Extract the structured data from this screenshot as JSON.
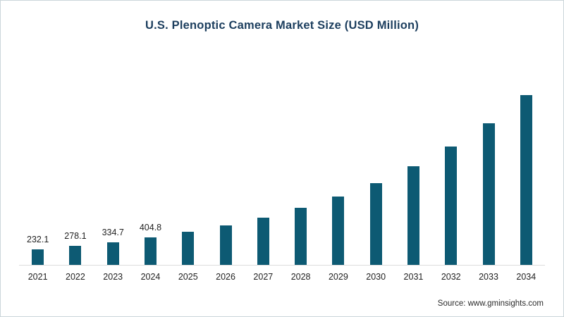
{
  "chart_data": {
    "type": "bar",
    "title": "U.S. Plenoptic Camera Market Size (USD Million)",
    "xlabel": "",
    "ylabel": "USD Million",
    "categories": [
      "2021",
      "2022",
      "2023",
      "2024",
      "2025",
      "2026",
      "2027",
      "2028",
      "2029",
      "2030",
      "2031",
      "2032",
      "2033",
      "2034"
    ],
    "values": [
      232.1,
      278.1,
      334.7,
      404.8,
      485,
      580,
      700,
      840,
      1010,
      1210,
      1455,
      1745,
      2095,
      2510
    ],
    "value_labels": [
      "232.1",
      "278.1",
      "334.7",
      "404.8",
      "",
      "",
      "",
      "",
      "",
      "",
      "",
      "",
      "",
      ""
    ],
    "ylim": [
      0,
      2600
    ],
    "grid": false,
    "legend": false,
    "bar_color": "#0d5a73"
  },
  "footer": {
    "source_label": "Source: www.gminsights.com"
  }
}
